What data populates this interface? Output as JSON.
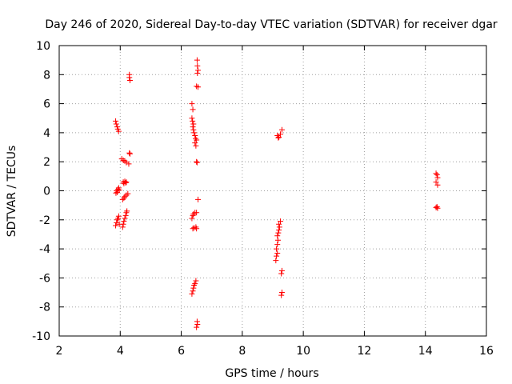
{
  "chart_data": {
    "type": "scatter",
    "title": "Day 246 of 2020, Sidereal Day-to-day VTEC variation (SDTVAR) for receiver dgar",
    "xlabel": "GPS time / hours",
    "ylabel": "SDTVAR / TECUs",
    "xlim": [
      2,
      16
    ],
    "ylim": [
      -10,
      10
    ],
    "xticks": [
      "2",
      "4",
      "6",
      "8",
      "10",
      "12",
      "14",
      "16"
    ],
    "yticks": [
      "10",
      "8",
      "6",
      "4",
      "2",
      "0",
      "-2",
      "-4",
      "-6",
      "-8",
      "-10"
    ],
    "grid": true,
    "marker": "plus",
    "series": [
      {
        "name": "dgar",
        "color": "#ff0000",
        "points": [
          [
            3.85,
            4.8
          ],
          [
            3.87,
            4.6
          ],
          [
            3.9,
            4.4
          ],
          [
            3.92,
            4.25
          ],
          [
            3.95,
            4.1
          ],
          [
            3.88,
            0.0
          ],
          [
            3.9,
            -0.1
          ],
          [
            3.92,
            0.1
          ],
          [
            3.95,
            0.2
          ],
          [
            3.97,
            0.05
          ],
          [
            3.86,
            -0.15
          ],
          [
            3.85,
            -2.4
          ],
          [
            3.88,
            -2.2
          ],
          [
            3.9,
            -2.0
          ],
          [
            3.93,
            -1.9
          ],
          [
            3.95,
            -1.75
          ],
          [
            3.97,
            -2.3
          ],
          [
            4.05,
            2.2
          ],
          [
            4.1,
            2.1
          ],
          [
            4.15,
            2.05
          ],
          [
            4.2,
            1.95
          ],
          [
            4.28,
            1.85
          ],
          [
            4.1,
            0.6
          ],
          [
            4.12,
            0.5
          ],
          [
            4.15,
            0.65
          ],
          [
            4.18,
            0.55
          ],
          [
            4.2,
            0.6
          ],
          [
            4.08,
            -0.6
          ],
          [
            4.12,
            -0.5
          ],
          [
            4.15,
            -0.4
          ],
          [
            4.2,
            -0.3
          ],
          [
            4.25,
            -0.2
          ],
          [
            4.08,
            -2.5
          ],
          [
            4.1,
            -2.3
          ],
          [
            4.12,
            -2.1
          ],
          [
            4.15,
            -1.9
          ],
          [
            4.18,
            -1.7
          ],
          [
            4.2,
            -1.5
          ],
          [
            4.22,
            -1.4
          ],
          [
            4.3,
            8.0
          ],
          [
            4.3,
            7.8
          ],
          [
            4.32,
            7.6
          ],
          [
            4.3,
            2.6
          ],
          [
            4.32,
            2.55
          ],
          [
            6.35,
            6.0
          ],
          [
            6.38,
            5.6
          ],
          [
            6.35,
            5.0
          ],
          [
            6.37,
            4.8
          ],
          [
            6.4,
            4.6
          ],
          [
            6.38,
            4.4
          ],
          [
            6.4,
            4.2
          ],
          [
            6.42,
            4.0
          ],
          [
            6.45,
            3.8
          ],
          [
            6.47,
            3.6
          ],
          [
            6.5,
            3.5
          ],
          [
            6.45,
            3.3
          ],
          [
            6.48,
            3.1
          ],
          [
            6.5,
            2.0
          ],
          [
            6.52,
            1.95
          ],
          [
            6.55,
            -0.6
          ],
          [
            6.35,
            -1.9
          ],
          [
            6.38,
            -1.7
          ],
          [
            6.4,
            -1.6
          ],
          [
            6.45,
            -1.5
          ],
          [
            6.5,
            -1.5
          ],
          [
            6.38,
            -2.6
          ],
          [
            6.42,
            -2.55
          ],
          [
            6.48,
            -2.5
          ],
          [
            6.5,
            -2.6
          ],
          [
            6.35,
            -7.1
          ],
          [
            6.38,
            -6.9
          ],
          [
            6.4,
            -6.7
          ],
          [
            6.42,
            -6.5
          ],
          [
            6.45,
            -6.4
          ],
          [
            6.48,
            -6.2
          ],
          [
            6.52,
            9.0
          ],
          [
            6.53,
            8.6
          ],
          [
            6.55,
            8.3
          ],
          [
            6.53,
            8.1
          ],
          [
            6.5,
            7.2
          ],
          [
            6.55,
            7.15
          ],
          [
            6.52,
            -9.0
          ],
          [
            6.53,
            -9.2
          ],
          [
            6.5,
            -9.4
          ],
          [
            9.15,
            3.8
          ],
          [
            9.18,
            3.65
          ],
          [
            9.2,
            3.7
          ],
          [
            9.25,
            3.9
          ],
          [
            9.3,
            4.2
          ],
          [
            9.1,
            -4.8
          ],
          [
            9.12,
            -4.5
          ],
          [
            9.15,
            -4.3
          ],
          [
            9.12,
            -4.0
          ],
          [
            9.15,
            -3.7
          ],
          [
            9.17,
            -3.4
          ],
          [
            9.15,
            -3.1
          ],
          [
            9.18,
            -2.9
          ],
          [
            9.2,
            -2.7
          ],
          [
            9.22,
            -2.5
          ],
          [
            9.2,
            -2.3
          ],
          [
            9.25,
            -2.1
          ],
          [
            9.28,
            -5.7
          ],
          [
            9.3,
            -5.5
          ],
          [
            9.28,
            -7.2
          ],
          [
            9.3,
            -7.0
          ],
          [
            14.35,
            1.2
          ],
          [
            14.38,
            1.1
          ],
          [
            14.4,
            0.9
          ],
          [
            14.35,
            0.6
          ],
          [
            14.4,
            0.4
          ],
          [
            14.38,
            -1.1
          ],
          [
            14.4,
            -1.2
          ],
          [
            14.35,
            -1.15
          ]
        ]
      }
    ]
  }
}
